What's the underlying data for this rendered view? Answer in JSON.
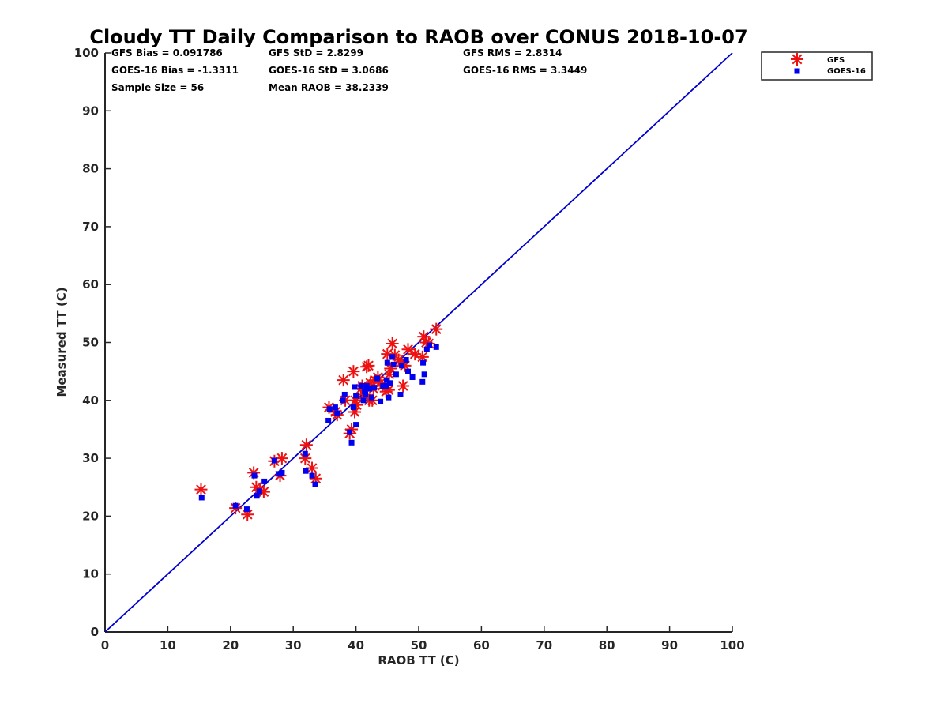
{
  "chart_data": {
    "type": "scatter",
    "title": "Cloudy TT Daily Comparison to RAOB over CONUS 2018-10-07",
    "xlabel": "RAOB TT (C)",
    "ylabel": "Measured TT (C)",
    "xlim": [
      0,
      100
    ],
    "ylim": [
      0,
      100
    ],
    "xticks": [
      0,
      10,
      20,
      30,
      40,
      50,
      60,
      70,
      80,
      90,
      100
    ],
    "yticks": [
      0,
      10,
      20,
      30,
      40,
      50,
      60,
      70,
      80,
      90,
      100
    ],
    "grid": false,
    "legend_position": "top-right (outside plot)",
    "stats": {
      "gfs_bias": "GFS Bias = 0.091786",
      "gfs_std": "GFS StD = 2.8299",
      "gfs_rms": "GFS RMS = 2.8314",
      "goes_bias": "GOES-16 Bias = -1.3311",
      "goes_std": "GOES-16 StD = 3.0686",
      "goes_rms": "GOES-16 RMS = 3.3449",
      "sample_size": "Sample Size = 56",
      "mean_raob": "Mean RAOB = 38.2339"
    },
    "reference_line": {
      "x": [
        0,
        100
      ],
      "y": [
        0,
        100
      ],
      "color": "#0000cc"
    },
    "series": [
      {
        "name": "GFS",
        "marker": "asterisk",
        "color": "#ee1111",
        "x": [
          15.3,
          20.8,
          22.7,
          23.7,
          24.1,
          24.7,
          25.3,
          27.0,
          27.9,
          28.2,
          31.9,
          32.1,
          33.0,
          33.6,
          35.7,
          36.7,
          37.0,
          38.0,
          39.0,
          39.3,
          39.6,
          39.8,
          39.9,
          40.1,
          40.8,
          41.3,
          41.7,
          42.0,
          42.1,
          42.3,
          42.6,
          43.0,
          43.5,
          44.2,
          44.8,
          45.0,
          45.2,
          45.5,
          45.8,
          46.2,
          46.8,
          47.2,
          47.5,
          48.3,
          49.4,
          50.6,
          50.8,
          51.2,
          51.6,
          52.8,
          38.3,
          41.0,
          42.8,
          43.9,
          45.3,
          47.8
        ],
        "y": [
          24.6,
          21.4,
          20.3,
          27.5,
          25.0,
          24.5,
          24.2,
          29.5,
          27.0,
          30.0,
          30.0,
          32.3,
          28.3,
          26.5,
          38.8,
          38.0,
          37.5,
          43.5,
          34.3,
          35.0,
          45.0,
          38.0,
          40.0,
          39.2,
          42.0,
          41.0,
          45.8,
          46.0,
          40.0,
          43.0,
          40.0,
          43.5,
          44.0,
          42.5,
          41.5,
          48.0,
          41.8,
          45.5,
          49.8,
          47.8,
          47.0,
          46.5,
          42.5,
          48.8,
          48.0,
          47.5,
          51.0,
          50.0,
          49.8,
          52.3,
          40.0,
          42.5,
          42.0,
          43.0,
          44.5,
          46.0
        ]
      },
      {
        "name": "GOES-16",
        "marker": "square",
        "color": "#0000ee",
        "x": [
          15.4,
          20.8,
          22.6,
          23.8,
          24.2,
          24.6,
          25.4,
          27.0,
          27.8,
          28.2,
          31.9,
          32.0,
          33.0,
          33.5,
          35.6,
          35.8,
          36.7,
          37.0,
          37.9,
          39.0,
          39.3,
          39.6,
          39.8,
          40.0,
          40.0,
          40.8,
          41.2,
          41.4,
          41.7,
          42.2,
          42.5,
          42.9,
          43.4,
          43.9,
          44.3,
          44.9,
          45.0,
          45.2,
          45.4,
          45.8,
          46.4,
          47.1,
          47.3,
          48.0,
          48.3,
          49.0,
          50.6,
          50.7,
          50.9,
          51.3,
          51.7,
          52.8,
          38.2,
          41.5,
          44.8,
          46.0
        ],
        "y": [
          23.2,
          21.8,
          21.2,
          27.0,
          23.5,
          24.3,
          26.0,
          29.6,
          27.3,
          27.5,
          30.8,
          27.8,
          27.0,
          25.5,
          36.5,
          38.5,
          38.8,
          37.8,
          40.0,
          34.5,
          32.7,
          38.8,
          42.3,
          35.8,
          40.8,
          42.5,
          40.0,
          41.5,
          42.5,
          42.0,
          40.5,
          42.2,
          43.8,
          39.8,
          42.5,
          43.5,
          46.5,
          40.5,
          43.0,
          47.5,
          44.5,
          41.0,
          46.0,
          47.0,
          45.0,
          44.0,
          43.2,
          46.5,
          44.5,
          48.8,
          49.5,
          49.2,
          41.0,
          41.0,
          42.5,
          46.2
        ]
      }
    ]
  }
}
